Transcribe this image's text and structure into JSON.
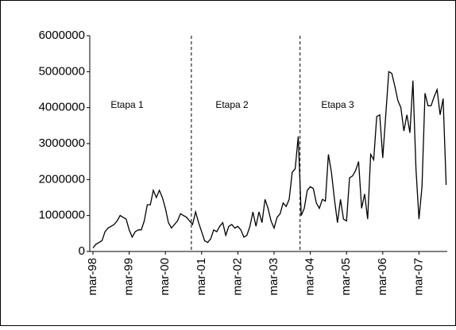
{
  "chart_data": {
    "type": "line",
    "categories": [
      "mar-98",
      null,
      null,
      null,
      null,
      null,
      null,
      null,
      null,
      null,
      null,
      null,
      "mar-99",
      null,
      null,
      null,
      null,
      null,
      null,
      null,
      null,
      null,
      null,
      null,
      "mar-00",
      null,
      null,
      null,
      null,
      null,
      null,
      null,
      null,
      null,
      null,
      null,
      "mar-01",
      null,
      null,
      null,
      null,
      null,
      null,
      null,
      null,
      null,
      null,
      null,
      "mar-02",
      null,
      null,
      null,
      null,
      null,
      null,
      null,
      null,
      null,
      null,
      null,
      "mar-03",
      null,
      null,
      null,
      null,
      null,
      null,
      null,
      null,
      null,
      null,
      null,
      "mar-04",
      null,
      null,
      null,
      null,
      null,
      null,
      null,
      null,
      null,
      null,
      null,
      "mar-05",
      null,
      null,
      null,
      null,
      null,
      null,
      null,
      null,
      null,
      null,
      null,
      "mar-06",
      null,
      null,
      null,
      null,
      null,
      null,
      null,
      null,
      null,
      null,
      null,
      "mar-07",
      null,
      null,
      null,
      null,
      null,
      null,
      null,
      null,
      null
    ],
    "values": [
      100000,
      200000,
      250000,
      300000,
      550000,
      650000,
      700000,
      750000,
      850000,
      1000000,
      950000,
      900000,
      600000,
      400000,
      550000,
      600000,
      600000,
      850000,
      1300000,
      1300000,
      1700000,
      1500000,
      1700000,
      1500000,
      1200000,
      800000,
      650000,
      750000,
      850000,
      1050000,
      1000000,
      950000,
      850000,
      750000,
      1100000,
      800000,
      550000,
      300000,
      250000,
      350000,
      600000,
      550000,
      700000,
      800000,
      450000,
      700000,
      750000,
      650000,
      700000,
      600000,
      400000,
      450000,
      700000,
      1100000,
      700000,
      1100000,
      800000,
      1450000,
      1200000,
      850000,
      650000,
      950000,
      1050000,
      1350000,
      1250000,
      1450000,
      2200000,
      2300000,
      3200000,
      1000000,
      1200000,
      1700000,
      1800000,
      1750000,
      1350000,
      1200000,
      1450000,
      1400000,
      2700000,
      2200000,
      1450000,
      800000,
      1450000,
      900000,
      850000,
      2050000,
      2100000,
      2250000,
      2500000,
      1200000,
      1600000,
      900000,
      2700000,
      2550000,
      3750000,
      3800000,
      2600000,
      3800000,
      5000000,
      4950000,
      4600000,
      4200000,
      4000000,
      3350000,
      3800000,
      3300000,
      4750000,
      2300000,
      900000,
      1800000,
      4400000,
      4050000,
      4050000,
      4300000,
      4500000,
      3800000,
      4250000,
      1850000
    ],
    "color": "#000000",
    "ylim": [
      0,
      6000000
    ],
    "yticks": [
      0,
      1000000,
      2000000,
      3000000,
      4000000,
      5000000,
      6000000
    ],
    "vlines": [
      32.6,
      68.6
    ],
    "annotations": [
      "Etapa 1",
      "Etapa 2",
      "Etapa 3"
    ],
    "grid": false
  }
}
